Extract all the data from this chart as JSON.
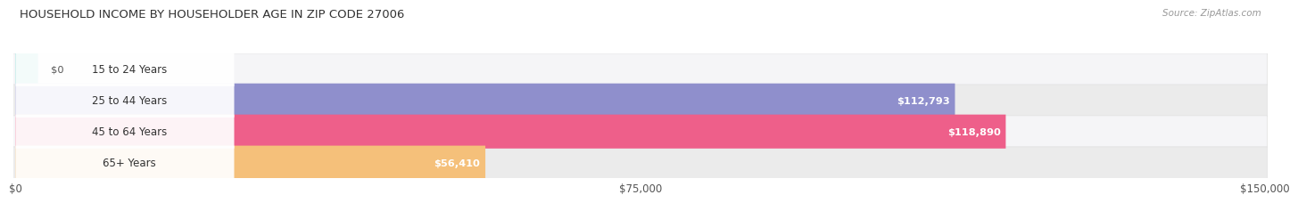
{
  "title": "HOUSEHOLD INCOME BY HOUSEHOLDER AGE IN ZIP CODE 27006",
  "source": "Source: ZipAtlas.com",
  "categories": [
    "15 to 24 Years",
    "25 to 44 Years",
    "45 to 64 Years",
    "65+ Years"
  ],
  "values": [
    0,
    112793,
    118890,
    56410
  ],
  "bar_colors": [
    "#5ecec8",
    "#8f8fcc",
    "#ee5f8a",
    "#f5c07a"
  ],
  "value_labels": [
    "$0",
    "$112,793",
    "$118,890",
    "$56,410"
  ],
  "x_ticks": [
    0,
    75000,
    150000
  ],
  "x_tick_labels": [
    "$0",
    "$75,000",
    "$150,000"
  ],
  "xlim_max": 150000,
  "figsize": [
    14.06,
    2.33
  ],
  "background_color": "#ffffff",
  "row_bg_color_odd": "#ebebeb",
  "row_bg_color_even": "#f5f5f7"
}
